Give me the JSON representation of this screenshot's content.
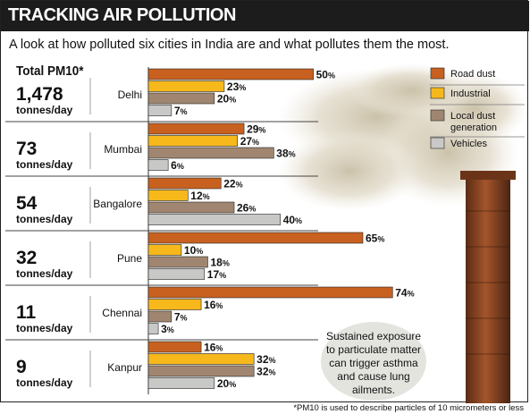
{
  "header": {
    "title": "TRACKING AIR POLLUTION",
    "subtitle": "A look at how polluted six cities in India are and what pollutes them the most.",
    "total_heading": "Total PM10*",
    "note": "Sustained exposure to particulate matter can trigger asthma and cause lung ailments.",
    "footnote": "*PM10 is used to describe particles of 10 micrometers or less"
  },
  "colors": {
    "road_dust": "#c8611f",
    "industrial": "#f7b81c",
    "local_dust": "#a08670",
    "vehicles": "#c8c9c7"
  },
  "chart_data": {
    "type": "bar",
    "orientation": "horizontal",
    "unit_symbol": "%",
    "total_unit": "tonnes/day",
    "xlim": [
      0,
      80
    ],
    "legend_placement": "top-right",
    "grid": false,
    "categories": [
      "Delhi",
      "Mumbai",
      "Bangalore",
      "Pune",
      "Chennai",
      "Kanpur"
    ],
    "totals": [
      "1,478",
      "73",
      "54",
      "32",
      "11",
      "9"
    ],
    "series": [
      {
        "name": "Road dust",
        "values": [
          50,
          29,
          22,
          65,
          74,
          16
        ]
      },
      {
        "name": "Industrial",
        "values": [
          23,
          27,
          12,
          10,
          16,
          32
        ]
      },
      {
        "name": "Local dust generation",
        "values": [
          20,
          38,
          26,
          18,
          7,
          32
        ]
      },
      {
        "name": "Vehicles",
        "values": [
          7,
          6,
          40,
          17,
          3,
          20
        ]
      }
    ]
  }
}
